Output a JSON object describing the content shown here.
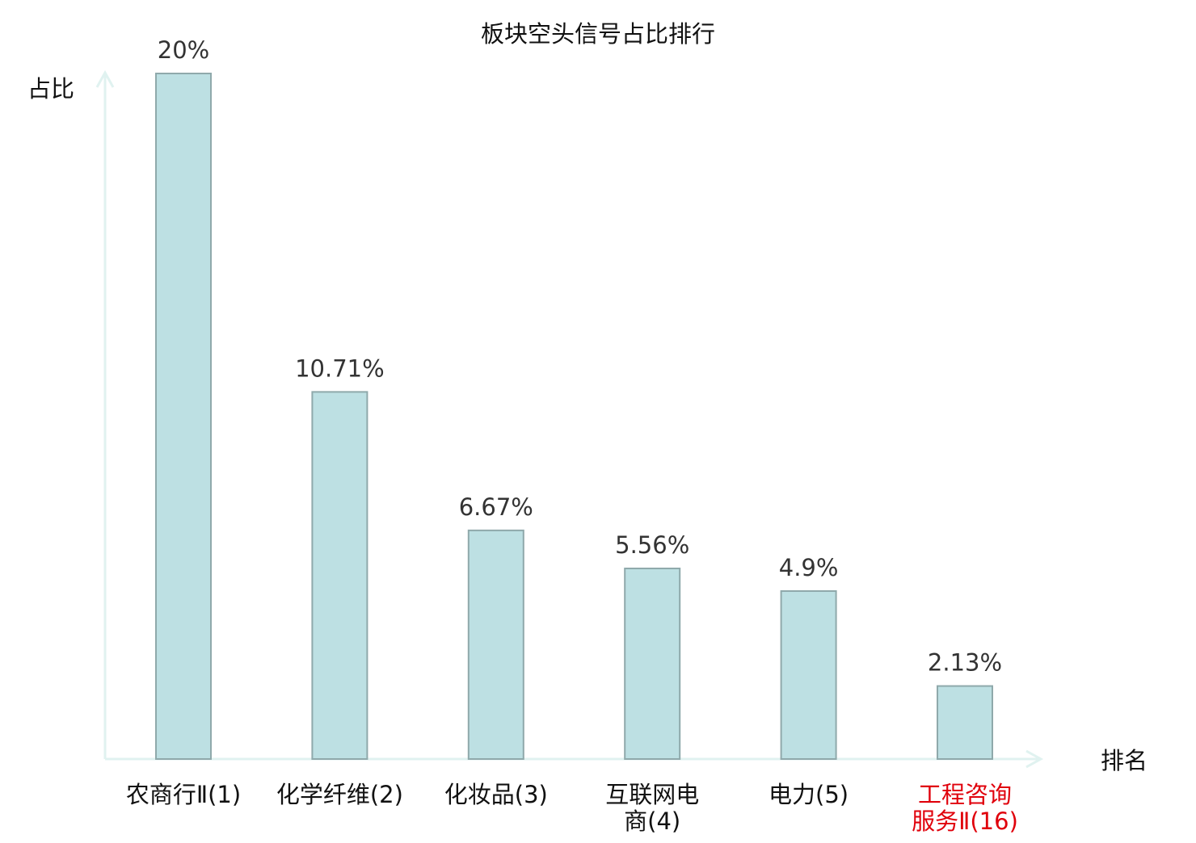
{
  "chart_data": {
    "type": "bar",
    "title": "板块空头信号占比排行",
    "ylabel": "占比",
    "xlabel": "排名",
    "ylim": [
      0,
      20
    ],
    "grid": false,
    "legend": "none",
    "categories": [
      {
        "lines": [
          "农商行Ⅱ(1)"
        ],
        "highlight": false
      },
      {
        "lines": [
          "化学纤维(2)"
        ],
        "highlight": false
      },
      {
        "lines": [
          "化妆品(3)"
        ],
        "highlight": false
      },
      {
        "lines": [
          "互联网电",
          "商(4)"
        ],
        "highlight": false
      },
      {
        "lines": [
          "电力(5)"
        ],
        "highlight": false
      },
      {
        "lines": [
          "工程咨询",
          "服务Ⅱ(16)"
        ],
        "highlight": true
      }
    ],
    "values": [
      20,
      10.71,
      6.67,
      5.56,
      4.9,
      2.13
    ],
    "value_labels": [
      "20%",
      "10.71%",
      "6.67%",
      "5.56%",
      "4.9%",
      "2.13%"
    ],
    "colors": {
      "bar_fill": "#bde0e3",
      "bar_stroke": "#8fa9ab",
      "axis": "#e0f2f0",
      "text": "#111111",
      "value_text": "#333333",
      "highlight_text": "#e0000b"
    }
  }
}
